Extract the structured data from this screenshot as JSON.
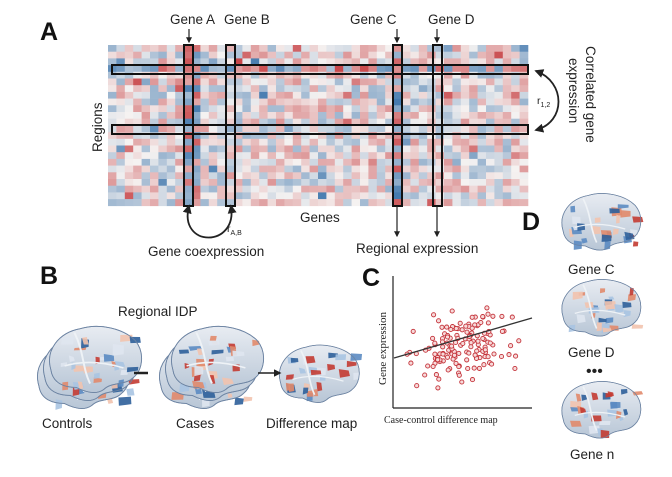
{
  "panelA": {
    "letter": "A",
    "gene_labels": [
      "Gene A",
      "Gene B",
      "Gene C",
      "Gene D"
    ],
    "rows_label": "Regions",
    "cols_label": "Genes",
    "correlated_label": [
      "Correlated gene",
      "expression"
    ],
    "r12": {
      "base": "r",
      "sub": "1,2"
    },
    "rAB": {
      "base": "r",
      "sub": "A,B"
    },
    "coexpression_label": "Gene coexpression",
    "regional_label": "Regional expression",
    "colors": {
      "high": "#c0262a",
      "low": "#2c6aa6",
      "neutral": "#f5f2f1"
    }
  },
  "panelB": {
    "letter": "B",
    "idp_label": "Regional IDP",
    "controls_label": "Controls",
    "cases_label": "Cases",
    "difference_label": "Difference map"
  },
  "panelC": {
    "letter": "C",
    "y_label": "Gene expression",
    "x_label": "Case-control difference map",
    "marker_color": "#c4333a"
  },
  "panelD": {
    "letter": "D",
    "brain_labels": [
      "Gene C",
      "Gene D",
      "Gene n"
    ],
    "ellipsis": "•••"
  }
}
